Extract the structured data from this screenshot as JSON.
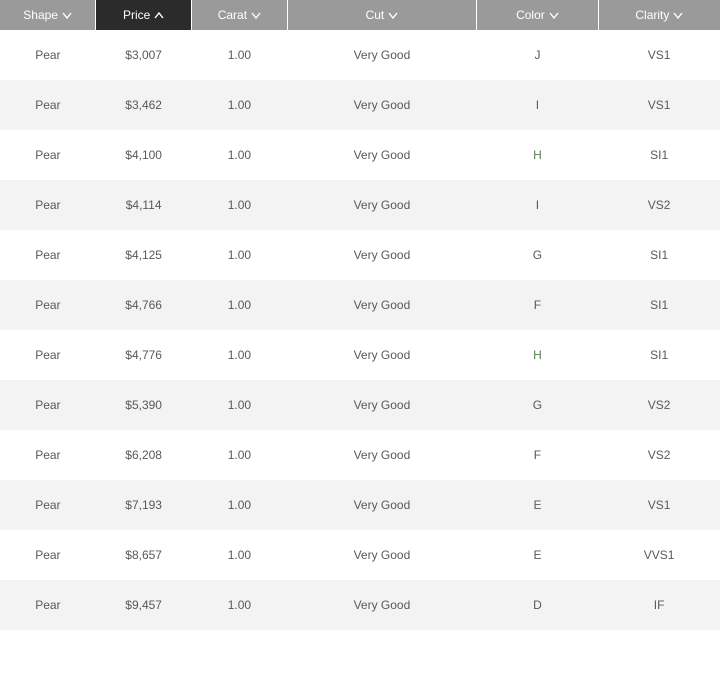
{
  "table": {
    "header_bg": "#9a9a9a",
    "header_active_bg": "#2b2b2b",
    "row_even_bg": "#ffffff",
    "row_odd_bg": "#f3f3f3",
    "text_color": "#595959",
    "link_color": "#4a8a3f",
    "columns": [
      {
        "key": "shape",
        "label": "Shape",
        "sort": "desc",
        "active": false
      },
      {
        "key": "price",
        "label": "Price",
        "sort": "asc",
        "active": true
      },
      {
        "key": "carat",
        "label": "Carat",
        "sort": "desc",
        "active": false
      },
      {
        "key": "cut",
        "label": "Cut",
        "sort": "desc",
        "active": false
      },
      {
        "key": "color",
        "label": "Color",
        "sort": "desc",
        "active": false
      },
      {
        "key": "clarity",
        "label": "Clarity",
        "sort": "desc",
        "active": false
      }
    ],
    "rows": [
      {
        "shape": "Pear",
        "price": "$3,007",
        "carat": "1.00",
        "cut": "Very Good",
        "color": "J",
        "color_link": false,
        "clarity": "VS1"
      },
      {
        "shape": "Pear",
        "price": "$3,462",
        "carat": "1.00",
        "cut": "Very Good",
        "color": "I",
        "color_link": false,
        "clarity": "VS1"
      },
      {
        "shape": "Pear",
        "price": "$4,100",
        "carat": "1.00",
        "cut": "Very Good",
        "color": "H",
        "color_link": true,
        "clarity": "SI1"
      },
      {
        "shape": "Pear",
        "price": "$4,114",
        "carat": "1.00",
        "cut": "Very Good",
        "color": "I",
        "color_link": false,
        "clarity": "VS2"
      },
      {
        "shape": "Pear",
        "price": "$4,125",
        "carat": "1.00",
        "cut": "Very Good",
        "color": "G",
        "color_link": false,
        "clarity": "SI1"
      },
      {
        "shape": "Pear",
        "price": "$4,766",
        "carat": "1.00",
        "cut": "Very Good",
        "color": "F",
        "color_link": false,
        "clarity": "SI1"
      },
      {
        "shape": "Pear",
        "price": "$4,776",
        "carat": "1.00",
        "cut": "Very Good",
        "color": "H",
        "color_link": true,
        "clarity": "SI1"
      },
      {
        "shape": "Pear",
        "price": "$5,390",
        "carat": "1.00",
        "cut": "Very Good",
        "color": "G",
        "color_link": false,
        "clarity": "VS2"
      },
      {
        "shape": "Pear",
        "price": "$6,208",
        "carat": "1.00",
        "cut": "Very Good",
        "color": "F",
        "color_link": false,
        "clarity": "VS2"
      },
      {
        "shape": "Pear",
        "price": "$7,193",
        "carat": "1.00",
        "cut": "Very Good",
        "color": "E",
        "color_link": false,
        "clarity": "VS1"
      },
      {
        "shape": "Pear",
        "price": "$8,657",
        "carat": "1.00",
        "cut": "Very Good",
        "color": "E",
        "color_link": false,
        "clarity": "VVS1"
      },
      {
        "shape": "Pear",
        "price": "$9,457",
        "carat": "1.00",
        "cut": "Very Good",
        "color": "D",
        "color_link": false,
        "clarity": "IF"
      }
    ]
  }
}
